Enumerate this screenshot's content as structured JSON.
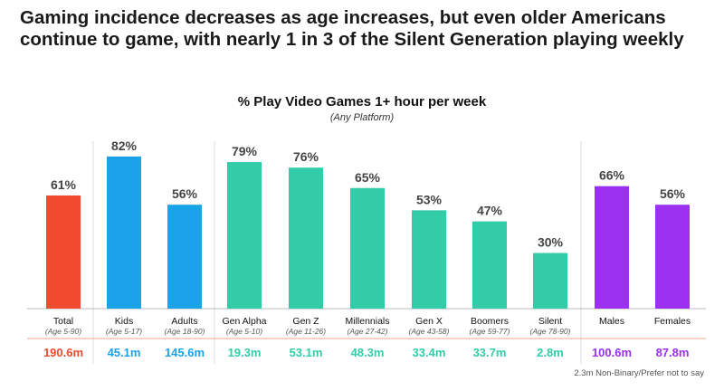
{
  "headline": "Gaming incidence decreases as age increases, but even older Americans continue to game, with nearly 1 in 3 of the Silent Generation playing weekly",
  "footnote": "2.3m Non-Binary/Prefer not to say",
  "colors": {
    "total": "#f04a2f",
    "kids_adults": "#1aa3e8",
    "generations": "#33cca8",
    "gender": "#9b30f0"
  },
  "chart_data": {
    "type": "bar",
    "title": "% Play Video Games 1+ hour per week",
    "subtitle": "(Any Platform)",
    "ylim": [
      0,
      100
    ],
    "grid": false,
    "categories": [
      "Total",
      "Kids",
      "Adults",
      "Gen Alpha",
      "Gen Z",
      "Millennials",
      "Gen X",
      "Boomers",
      "Silent",
      "Males",
      "Females"
    ],
    "age_ranges": [
      "(Age 5-90)",
      "(Age 5-17)",
      "(Age 18-90)",
      "(Age 5-10)",
      "(Age 11-26)",
      "(Age 27-42)",
      "(Age 43-58)",
      "(Age 59-77)",
      "(Age 78-90)",
      "",
      ""
    ],
    "values": [
      61,
      82,
      56,
      79,
      76,
      65,
      53,
      47,
      30,
      66,
      56
    ],
    "value_labels": [
      "61%",
      "82%",
      "56%",
      "79%",
      "76%",
      "65%",
      "53%",
      "47%",
      "30%",
      "66%",
      "56%"
    ],
    "populations": [
      "190.6m",
      "45.1m",
      "145.6m",
      "19.3m",
      "53.1m",
      "48.3m",
      "33.4m",
      "33.7m",
      "2.8m",
      "100.6m",
      "87.8m"
    ],
    "groups": [
      "total",
      "kids_adults",
      "kids_adults",
      "generations",
      "generations",
      "generations",
      "generations",
      "generations",
      "generations",
      "gender",
      "gender"
    ]
  }
}
